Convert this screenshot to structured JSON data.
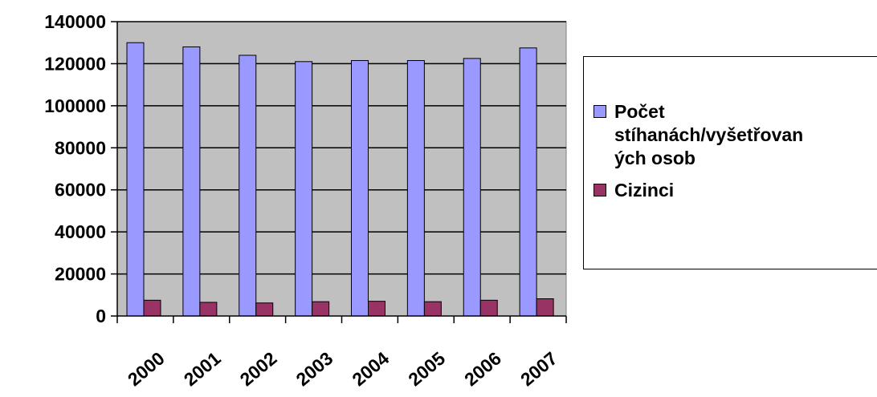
{
  "chart_data": {
    "type": "bar",
    "categories": [
      "2000",
      "2001",
      "2002",
      "2003",
      "2004",
      "2005",
      "2006",
      "2007"
    ],
    "series": [
      {
        "name": "Počet stíhanách/vyšetřovaných osob",
        "values": [
          130000,
          128000,
          124000,
          121000,
          121500,
          121500,
          122500,
          127500
        ]
      },
      {
        "name": "Cizinci",
        "values": [
          7500,
          6500,
          6200,
          6800,
          7000,
          6800,
          7500,
          8200
        ]
      }
    ],
    "ylim": [
      0,
      140000
    ],
    "y_ticks": [
      "0",
      "20000",
      "40000",
      "60000",
      "80000",
      "100000",
      "120000",
      "140000"
    ],
    "grid": true,
    "legend_position": "right",
    "colors": {
      "plot_background": "#c0c0c0",
      "series_1": "#9999ff",
      "series_2": "#993366"
    }
  },
  "legend": {
    "items": [
      {
        "lines": [
          "Počet",
          "stíhanách/vyšetřovan",
          "ých osob"
        ]
      },
      {
        "lines": [
          "Cizinci"
        ]
      }
    ]
  }
}
